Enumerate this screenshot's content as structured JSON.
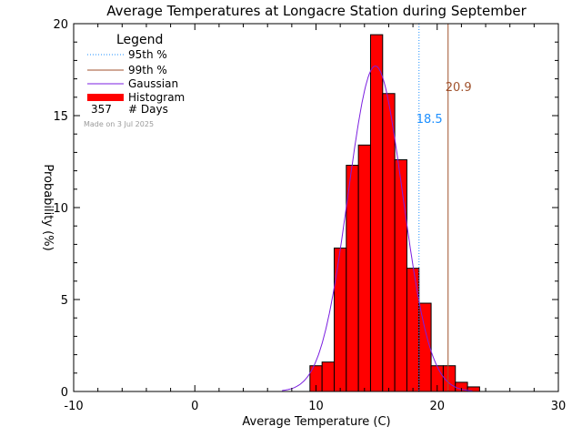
{
  "chart_data": {
    "type": "bar",
    "title": "Average Temperatures at Longacre Station during September",
    "xlabel": "Average Temperature (C)",
    "ylabel": "Probability  (%)",
    "xlim": [
      -10,
      30
    ],
    "ylim": [
      0,
      20
    ],
    "x_ticks": [
      "-10",
      "0",
      "10",
      "20",
      "30"
    ],
    "y_ticks": [
      "0",
      "5",
      "10",
      "15",
      "20"
    ],
    "grid": false,
    "legend": {
      "title": "Legend",
      "position": "top-left",
      "items": [
        {
          "label": "95th %",
          "color": "#1E90FF",
          "style": "dotted"
        },
        {
          "label": "99th %",
          "color": "#A0522D",
          "style": "solid"
        },
        {
          "label": "Gaussian",
          "color": "#7B1FE0",
          "style": "solid"
        },
        {
          "label": "Histogram",
          "color": "#FF0000",
          "style": "thick"
        }
      ],
      "count_value": "357",
      "count_label": "# Days",
      "made_on": "Made on  3 Jul 2025"
    },
    "histogram": {
      "bin_width": 1.0,
      "color": "#FF0000",
      "bins": [
        {
          "start": 9.5,
          "value": 1.4
        },
        {
          "start": 10.5,
          "value": 1.6
        },
        {
          "start": 11.5,
          "value": 7.8
        },
        {
          "start": 12.5,
          "value": 12.3
        },
        {
          "start": 13.5,
          "value": 13.4
        },
        {
          "start": 14.5,
          "value": 19.4
        },
        {
          "start": 15.5,
          "value": 16.2
        },
        {
          "start": 16.5,
          "value": 12.6
        },
        {
          "start": 17.5,
          "value": 6.7
        },
        {
          "start": 18.5,
          "value": 4.8
        },
        {
          "start": 19.5,
          "value": 1.4
        },
        {
          "start": 20.5,
          "value": 1.4
        },
        {
          "start": 21.5,
          "value": 0.5
        },
        {
          "start": 22.5,
          "value": 0.25
        }
      ]
    },
    "gaussian": {
      "color": "#7B1FE0",
      "mean": 14.9,
      "sigma": 2.25,
      "peak": 17.7
    },
    "percentiles": [
      {
        "name": "95th %",
        "x": 18.5,
        "label": "18.5",
        "color": "#1E90FF",
        "style": "dotted"
      },
      {
        "name": "99th %",
        "x": 20.9,
        "label": "20.9",
        "color": "#A0522D",
        "style": "solid"
      }
    ]
  }
}
